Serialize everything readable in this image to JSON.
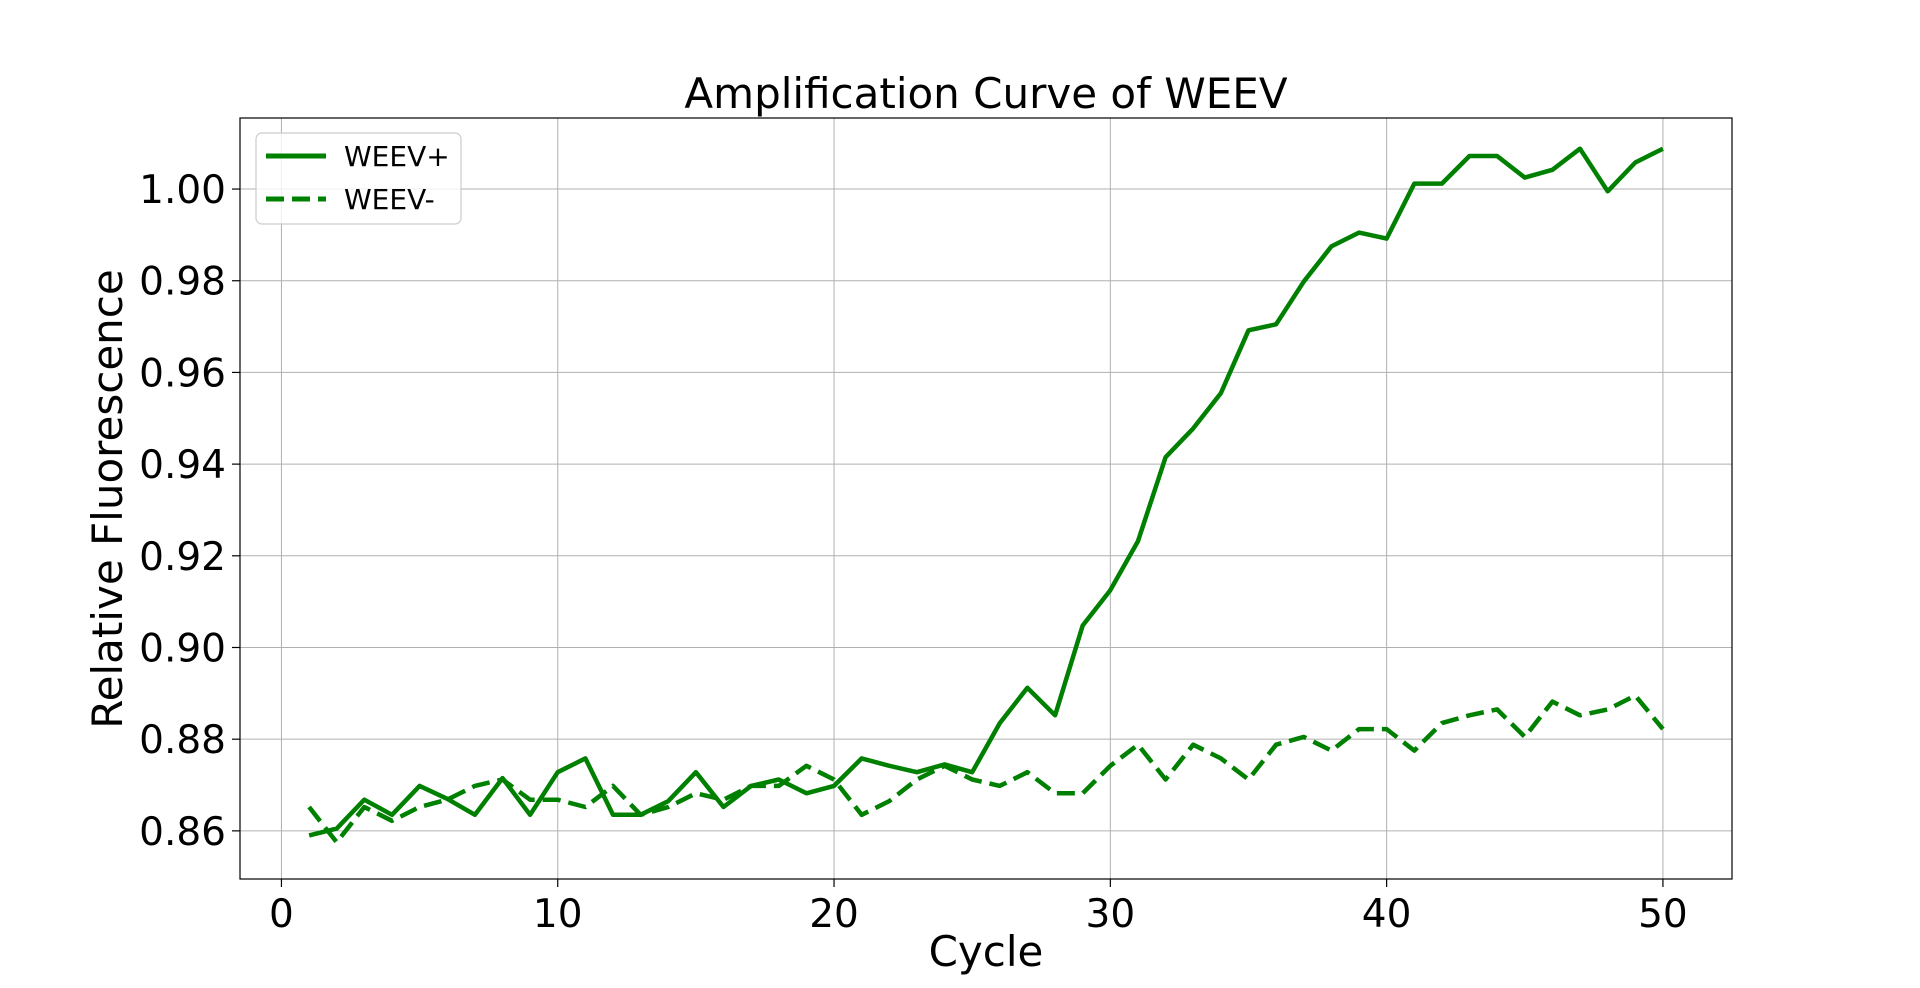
{
  "chart_data": {
    "type": "line",
    "title": "Amplification Curve of WEEV",
    "xlabel": "Cycle",
    "ylabel": "Relative Fluorescence",
    "xlim": [
      -1.5,
      52.5
    ],
    "ylim": [
      0.8495,
      1.0155
    ],
    "xticks": [
      0,
      10,
      20,
      30,
      40,
      50
    ],
    "xtick_labels": [
      "0",
      "10",
      "20",
      "30",
      "40",
      "50"
    ],
    "yticks": [
      0.86,
      0.88,
      0.9,
      0.92,
      0.94,
      0.96,
      0.98,
      1.0
    ],
    "ytick_labels": [
      "0.86",
      "0.88",
      "0.90",
      "0.92",
      "0.94",
      "0.96",
      "0.98",
      "1.00"
    ],
    "grid": true,
    "legend_position": "top-left",
    "x": [
      1,
      2,
      3,
      4,
      5,
      6,
      7,
      8,
      9,
      10,
      11,
      12,
      13,
      14,
      15,
      16,
      17,
      18,
      19,
      20,
      21,
      22,
      23,
      24,
      25,
      26,
      27,
      28,
      29,
      30,
      31,
      32,
      33,
      34,
      35,
      36,
      37,
      38,
      39,
      40,
      41,
      42,
      43,
      44,
      45,
      46,
      47,
      48,
      49,
      50
    ],
    "series": [
      {
        "name": "WEEV+",
        "color": "#008000",
        "line_style": "solid",
        "values": [
          0.859,
          0.8605,
          0.8668,
          0.8635,
          0.8698,
          0.867,
          0.8635,
          0.8715,
          0.8635,
          0.8728,
          0.8758,
          0.8635,
          0.8635,
          0.8665,
          0.8728,
          0.8652,
          0.8698,
          0.8712,
          0.8682,
          0.8698,
          0.8758,
          0.8742,
          0.8728,
          0.8745,
          0.8728,
          0.8835,
          0.8912,
          0.8852,
          0.9048,
          0.9125,
          0.9232,
          0.9415,
          0.9478,
          0.9555,
          0.9692,
          0.9705,
          0.9798,
          0.9875,
          0.9905,
          0.9892,
          1.0012,
          1.0012,
          1.0072,
          1.0072,
          1.0025,
          1.0042,
          1.0088,
          0.9995,
          1.0058,
          1.0088
        ]
      },
      {
        "name": "WEEV-",
        "color": "#008000",
        "line_style": "dashed",
        "values": [
          0.8652,
          0.8575,
          0.8652,
          0.8622,
          0.8652,
          0.8668,
          0.8698,
          0.8712,
          0.8668,
          0.8668,
          0.8652,
          0.8698,
          0.8635,
          0.8652,
          0.8682,
          0.8668,
          0.8698,
          0.8698,
          0.8742,
          0.8712,
          0.8635,
          0.8665,
          0.8712,
          0.8742,
          0.8712,
          0.8698,
          0.8728,
          0.8682,
          0.8682,
          0.8742,
          0.8788,
          0.8712,
          0.8788,
          0.8758,
          0.8712,
          0.8788,
          0.8805,
          0.8775,
          0.8822,
          0.8822,
          0.8775,
          0.8835,
          0.8852,
          0.8865,
          0.8805,
          0.8882,
          0.8852,
          0.8865,
          0.8895,
          0.8822
        ]
      }
    ]
  }
}
